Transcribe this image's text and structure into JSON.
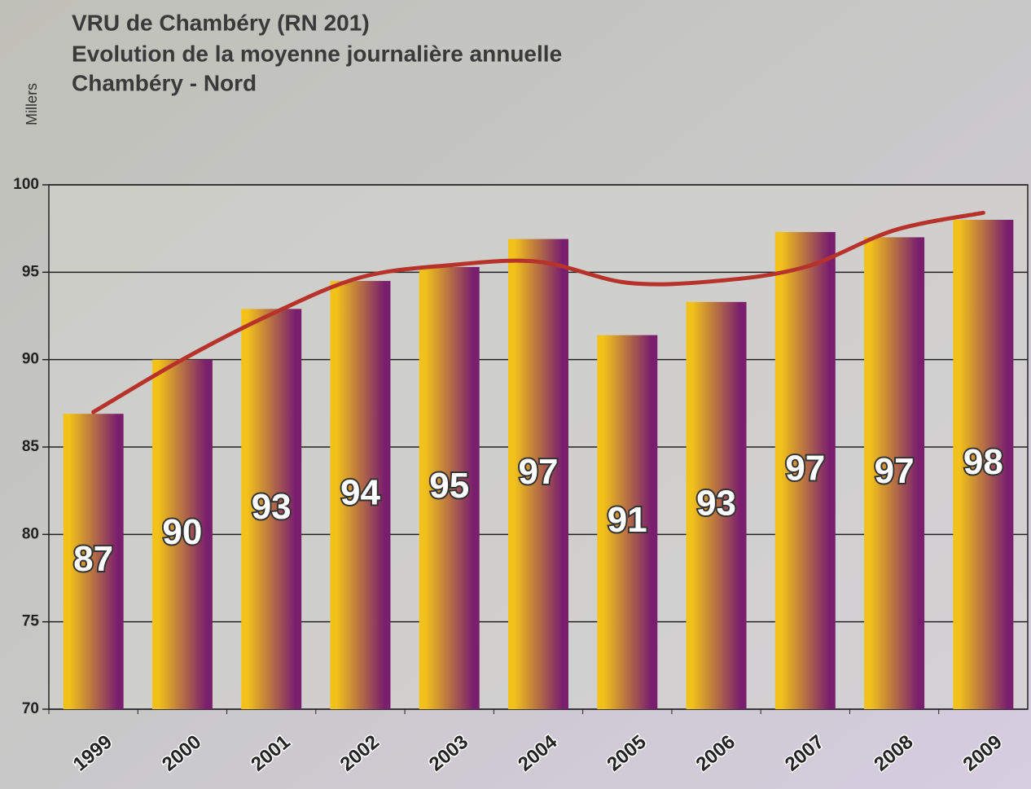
{
  "chart_data": {
    "type": "bar",
    "title": "VRU de Chambéry (RN 201)",
    "subtitle": "Evolution de la moyenne journalière annuelle",
    "subtitle2": "Chambéry - Nord",
    "y_label": "Millers",
    "categories": [
      "1999",
      "2000",
      "2001",
      "2002",
      "2003",
      "2004",
      "2005",
      "2006",
      "2007",
      "2008",
      "2009"
    ],
    "values": [
      86.9,
      90.0,
      92.9,
      94.5,
      95.3,
      96.9,
      91.4,
      93.3,
      97.3,
      97.0,
      98.0
    ],
    "value_labels": [
      "87",
      "90",
      "93",
      "94",
      "95",
      "97",
      "91",
      "93",
      "97",
      "97",
      "98"
    ],
    "colors": [
      "#f2c21a",
      "#7a1e6e"
    ],
    "trend_values": [
      87.0,
      90.0,
      92.6,
      94.7,
      95.4,
      95.6,
      94.4,
      94.5,
      95.3,
      97.4,
      98.4
    ],
    "trend_color": "#b8322c",
    "ylim": [
      70,
      100
    ],
    "yticks": [
      70,
      75,
      80,
      85,
      90,
      95,
      100
    ],
    "grid": true
  }
}
